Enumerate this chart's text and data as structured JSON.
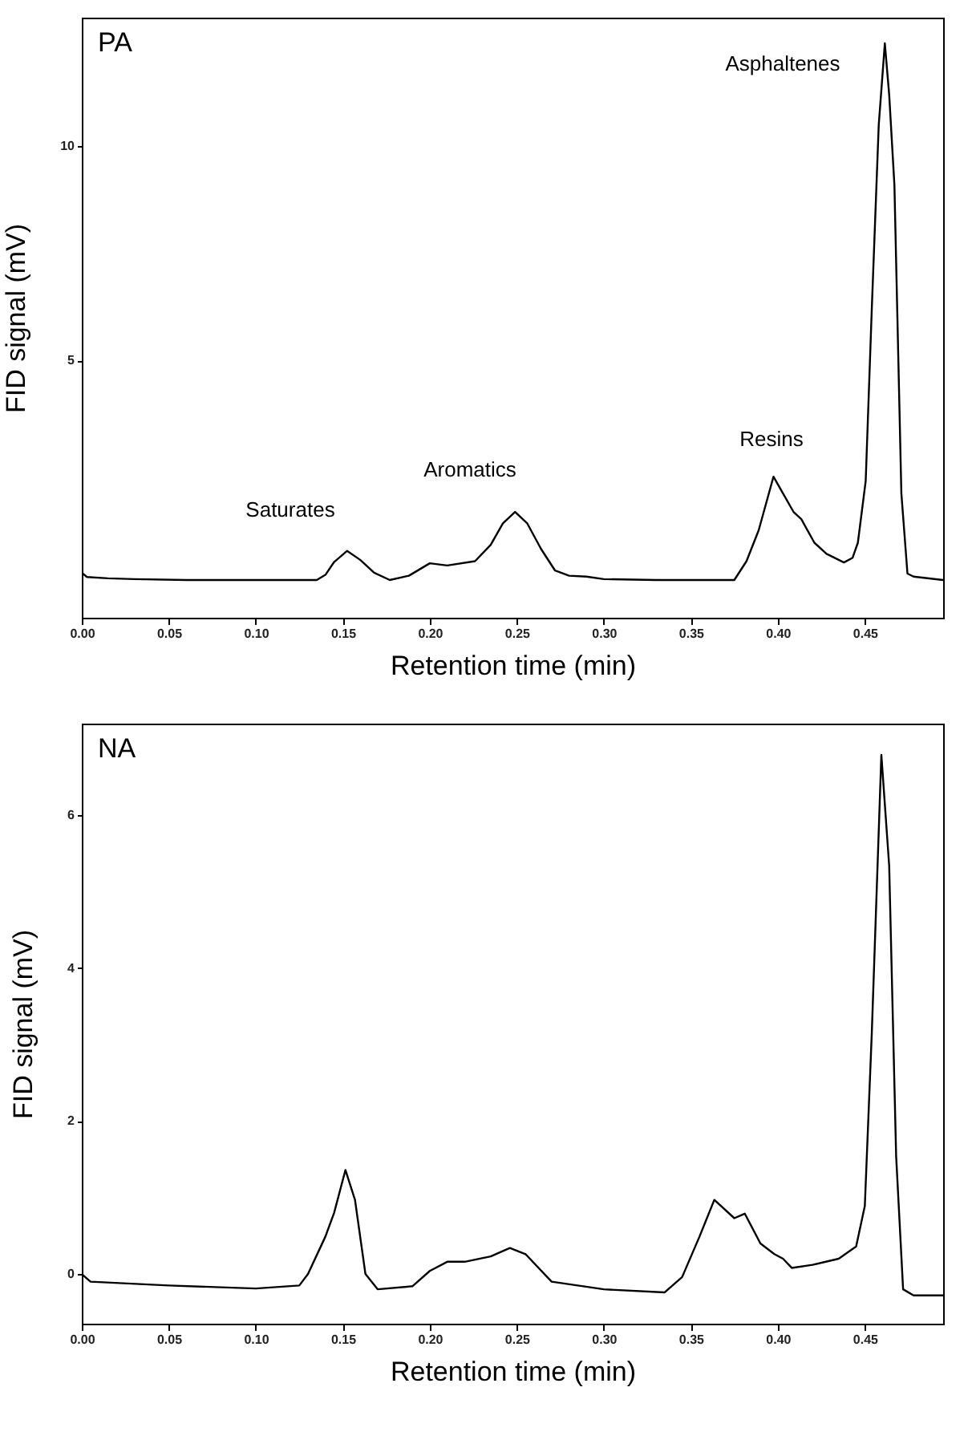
{
  "chart_data": [
    {
      "type": "line",
      "title": "PA",
      "xlabel": "Retention time (min)",
      "ylabel": "FID signal (mV)",
      "xlim": [
        0,
        0.495
      ],
      "xticks": [
        {
          "value": 0,
          "label": "0.00"
        },
        {
          "value": 0.05,
          "label": "0.05"
        },
        {
          "value": 0.1,
          "label": "0.10"
        },
        {
          "value": 0.15,
          "label": "0.15"
        },
        {
          "value": 0.2,
          "label": "0.20"
        },
        {
          "value": 0.25,
          "label": "0.25"
        },
        {
          "value": 0.3,
          "label": "0.30"
        },
        {
          "value": 0.35,
          "label": "0.35"
        },
        {
          "value": 0.4,
          "label": "0.40"
        },
        {
          "value": 0.45,
          "label": "0.45"
        }
      ],
      "ylim": [
        -1,
        13
      ],
      "yticks": [
        5,
        10
      ],
      "grid": false,
      "marker": "none",
      "line_style": "solid",
      "annotations": [
        "Saturates",
        "Aromatics",
        "Resins",
        "Asphaltenes"
      ],
      "series": [
        {
          "color": "#000000",
          "x": [
            0,
            0.003,
            0.015,
            0.03,
            0.06,
            0.1,
            0.135,
            0.14,
            0.145,
            0.1525,
            0.16,
            0.168,
            0.177,
            0.188,
            0.2,
            0.21,
            0.226,
            0.235,
            0.242,
            0.249,
            0.256,
            0.264,
            0.272,
            0.28,
            0.29,
            0.3,
            0.33,
            0.36,
            0.375,
            0.382,
            0.389,
            0.3975,
            0.403,
            0.409,
            0.4135,
            0.421,
            0.428,
            0.438,
            0.443,
            0.446,
            0.4505,
            0.454,
            0.458,
            0.4615,
            0.464,
            0.467,
            0.471,
            0.4745,
            0.478,
            0.495
          ],
          "values": [
            0.05,
            -0.05,
            -0.08,
            -0.1,
            -0.12,
            -0.12,
            -0.12,
            0.0,
            0.3,
            0.56,
            0.35,
            0.05,
            -0.12,
            -0.02,
            0.27,
            0.22,
            0.32,
            0.7,
            1.2,
            1.47,
            1.2,
            0.6,
            0.1,
            -0.02,
            -0.04,
            -0.1,
            -0.12,
            -0.12,
            -0.12,
            0.32,
            1.04,
            2.29,
            1.9,
            1.47,
            1.3,
            0.75,
            0.49,
            0.29,
            0.4,
            0.75,
            2.19,
            6.2,
            10.5,
            12.4,
            11.2,
            9.1,
            1.9,
            0.03,
            -0.04,
            -0.12
          ]
        }
      ]
    },
    {
      "type": "line",
      "title": "NA",
      "xlabel": "Retention time (min)",
      "ylabel": "FID signal (mV)",
      "xlim": [
        0,
        0.495
      ],
      "xticks": [
        {
          "value": 0,
          "label": "0.00"
        },
        {
          "value": 0.05,
          "label": "0.05"
        },
        {
          "value": 0.1,
          "label": "0.10"
        },
        {
          "value": 0.15,
          "label": "0.15"
        },
        {
          "value": 0.2,
          "label": "0.20"
        },
        {
          "value": 0.25,
          "label": "0.25"
        },
        {
          "value": 0.3,
          "label": "0.30"
        },
        {
          "value": 0.35,
          "label": "0.35"
        },
        {
          "value": 0.4,
          "label": "0.40"
        },
        {
          "value": 0.45,
          "label": "0.45"
        }
      ],
      "ylim": [
        -0.65,
        7.2
      ],
      "yticks": [
        0,
        2,
        4,
        6
      ],
      "grid": false,
      "marker": "none",
      "line_style": "solid",
      "series": [
        {
          "color": "#000000",
          "x": [
            0,
            0.005,
            0.05,
            0.1,
            0.125,
            0.13,
            0.14,
            0.145,
            0.1515,
            0.157,
            0.163,
            0.17,
            0.19,
            0.2,
            0.21,
            0.22,
            0.235,
            0.246,
            0.255,
            0.27,
            0.3,
            0.335,
            0.345,
            0.355,
            0.3635,
            0.375,
            0.381,
            0.39,
            0.398,
            0.403,
            0.408,
            0.42,
            0.435,
            0.445,
            0.45,
            0.454,
            0.4595,
            0.464,
            0.468,
            0.472,
            0.478,
            0.495
          ],
          "values": [
            0,
            -0.1,
            -0.15,
            -0.19,
            -0.15,
            0,
            0.49,
            0.8,
            1.36,
            0.97,
            0,
            -0.2,
            -0.16,
            0.04,
            0.16,
            0.16,
            0.23,
            0.34,
            0.26,
            -0.1,
            -0.2,
            -0.24,
            -0.04,
            0.49,
            0.97,
            0.73,
            0.79,
            0.4,
            0.26,
            0.2,
            0.08,
            0.12,
            0.2,
            0.36,
            0.89,
            3.15,
            6.79,
            5.34,
            1.54,
            -0.2,
            -0.28,
            -0.28
          ]
        }
      ]
    }
  ]
}
